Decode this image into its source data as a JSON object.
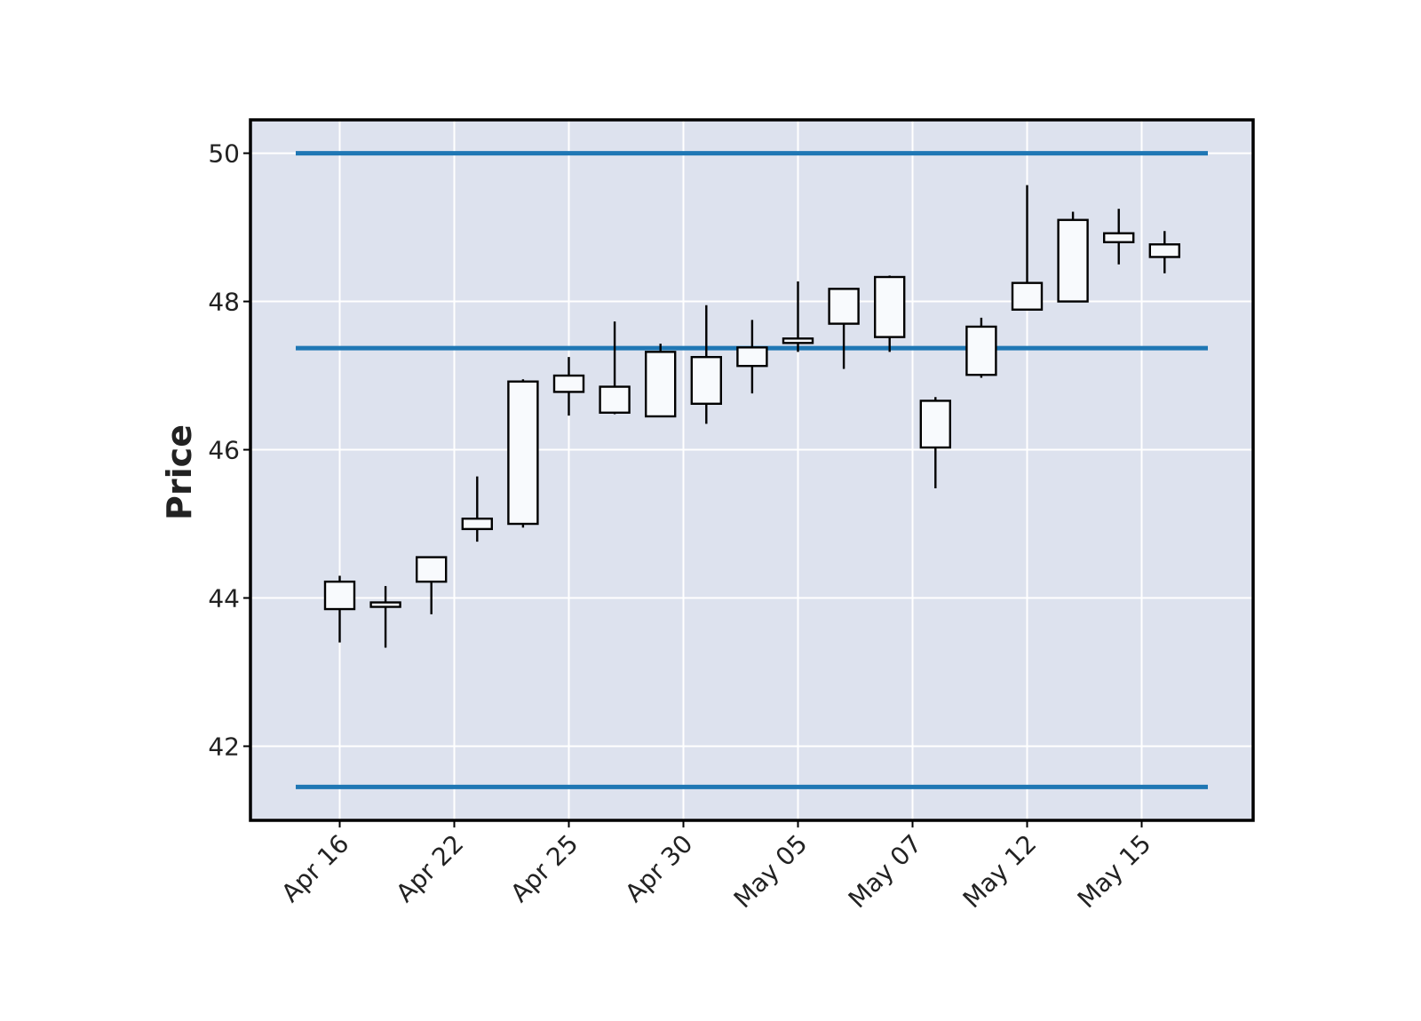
{
  "chart_data": {
    "type": "candlestick",
    "title": "",
    "xlabel": "",
    "ylabel": "Price",
    "ylim": [
      41.0,
      50.45
    ],
    "y_ticks": [
      "42",
      "44",
      "46",
      "48",
      "50"
    ],
    "x_tick_labels": [
      "Apr 16",
      "Apr 22",
      "Apr 25",
      "Apr 30",
      "May 05",
      "May 07",
      "May 12",
      "May 15"
    ],
    "x_tick_candle_index": [
      0,
      2.5,
      5,
      7.5,
      10,
      12.5,
      15,
      17.5
    ],
    "grid": true,
    "up_color": "#f8fafd",
    "down_color": "#17181c",
    "line_color": "#1f77b4",
    "background_color": "#dde2ee",
    "candles": [
      {
        "open": 43.85,
        "high": 44.3,
        "low": 43.4,
        "close": 44.22
      },
      {
        "open": 43.88,
        "high": 44.16,
        "low": 43.33,
        "close": 43.94
      },
      {
        "open": 44.22,
        "high": 44.55,
        "low": 43.78,
        "close": 44.55
      },
      {
        "open": 44.93,
        "high": 45.64,
        "low": 44.76,
        "close": 45.07
      },
      {
        "open": 45.0,
        "high": 46.95,
        "low": 44.95,
        "close": 46.92
      },
      {
        "open": 46.78,
        "high": 47.25,
        "low": 46.46,
        "close": 47.0
      },
      {
        "open": 46.5,
        "high": 47.73,
        "low": 46.48,
        "close": 46.85
      },
      {
        "open": 46.45,
        "high": 47.43,
        "low": 46.45,
        "close": 47.32
      },
      {
        "open": 46.62,
        "high": 47.95,
        "low": 46.35,
        "close": 47.25
      },
      {
        "open": 47.13,
        "high": 47.75,
        "low": 46.76,
        "close": 47.38
      },
      {
        "open": 47.44,
        "high": 48.27,
        "low": 47.32,
        "close": 47.5
      },
      {
        "open": 47.7,
        "high": 48.17,
        "low": 47.09,
        "close": 48.17
      },
      {
        "open": 47.52,
        "high": 48.35,
        "low": 47.32,
        "close": 48.33
      },
      {
        "open": 46.03,
        "high": 46.71,
        "low": 45.48,
        "close": 46.66
      },
      {
        "open": 47.01,
        "high": 47.78,
        "low": 46.97,
        "close": 47.66
      },
      {
        "open": 47.89,
        "high": 49.57,
        "low": 47.89,
        "close": 48.25
      },
      {
        "open": 48.0,
        "high": 49.21,
        "low": 48.0,
        "close": 49.1
      },
      {
        "open": 48.8,
        "high": 49.25,
        "low": 48.5,
        "close": 48.92
      },
      {
        "open": 48.6,
        "high": 48.95,
        "low": 48.38,
        "close": 48.77
      }
    ],
    "hlines": [
      50.0,
      47.37,
      41.45
    ]
  }
}
